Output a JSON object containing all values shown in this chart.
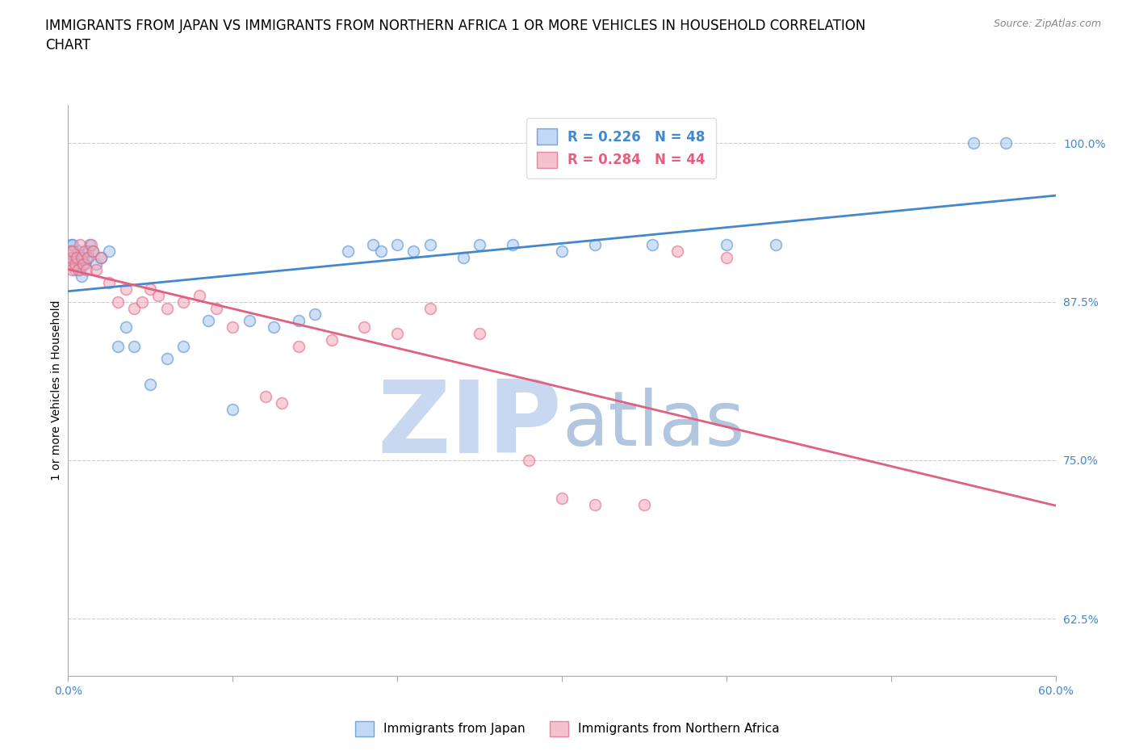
{
  "title": "IMMIGRANTS FROM JAPAN VS IMMIGRANTS FROM NORTHERN AFRICA 1 OR MORE VEHICLES IN HOUSEHOLD CORRELATION\nCHART",
  "source": "Source: ZipAtlas.com",
  "xmin": 0.0,
  "xmax": 60.0,
  "ymin": 58.0,
  "ymax": 103.0,
  "japan_R": 0.226,
  "japan_N": 48,
  "africa_R": 0.284,
  "africa_N": 44,
  "japan_color": "#a8c8f0",
  "africa_color": "#f0a8b8",
  "japan_line_color": "#4488cc",
  "africa_line_color": "#e06080",
  "japan_scatter_x": [
    0.1,
    0.15,
    0.2,
    0.25,
    0.3,
    0.35,
    0.4,
    0.5,
    0.6,
    0.7,
    0.8,
    0.9,
    1.0,
    1.1,
    1.2,
    1.3,
    1.5,
    1.7,
    2.0,
    2.5,
    3.0,
    3.5,
    4.0,
    5.0,
    6.0,
    7.0,
    8.5,
    10.0,
    11.0,
    12.5,
    14.0,
    15.0,
    17.0,
    18.5,
    19.0,
    20.0,
    21.0,
    22.0,
    24.0,
    25.0,
    27.0,
    30.0,
    32.0,
    35.5,
    40.0,
    43.0,
    55.0,
    57.0
  ],
  "japan_scatter_y": [
    91.0,
    90.5,
    92.0,
    91.5,
    92.0,
    91.0,
    90.0,
    90.5,
    91.5,
    90.0,
    89.5,
    91.0,
    90.5,
    91.0,
    91.5,
    92.0,
    91.5,
    90.5,
    91.0,
    91.5,
    84.0,
    85.5,
    84.0,
    81.0,
    83.0,
    84.0,
    86.0,
    79.0,
    86.0,
    85.5,
    86.0,
    86.5,
    91.5,
    92.0,
    91.5,
    92.0,
    91.5,
    92.0,
    91.0,
    92.0,
    92.0,
    91.5,
    92.0,
    92.0,
    92.0,
    92.0,
    100.0,
    100.0
  ],
  "africa_scatter_x": [
    0.1,
    0.15,
    0.2,
    0.25,
    0.3,
    0.4,
    0.5,
    0.6,
    0.7,
    0.8,
    0.9,
    1.0,
    1.1,
    1.2,
    1.4,
    1.5,
    1.7,
    2.0,
    2.5,
    3.0,
    3.5,
    4.0,
    4.5,
    5.0,
    5.5,
    6.0,
    7.0,
    8.0,
    9.0,
    10.0,
    12.0,
    13.0,
    14.0,
    16.0,
    18.0,
    20.0,
    22.0,
    25.0,
    28.0,
    30.0,
    32.0,
    35.0,
    37.0,
    40.0
  ],
  "africa_scatter_y": [
    90.5,
    91.5,
    91.0,
    90.0,
    91.5,
    90.5,
    91.0,
    90.0,
    92.0,
    91.0,
    90.5,
    91.5,
    90.0,
    91.0,
    92.0,
    91.5,
    90.0,
    91.0,
    89.0,
    87.5,
    88.5,
    87.0,
    87.5,
    88.5,
    88.0,
    87.0,
    87.5,
    88.0,
    87.0,
    85.5,
    80.0,
    79.5,
    84.0,
    84.5,
    85.5,
    85.0,
    87.0,
    85.0,
    75.0,
    72.0,
    71.5,
    71.5,
    91.5,
    91.0
  ],
  "watermark_zip": "ZIP",
  "watermark_atlas": "atlas",
  "watermark_color_zip": "#c8d8f0",
  "watermark_color_atlas": "#a0b8d8",
  "watermark_fontsize": 90,
  "background_color": "#ffffff",
  "grid_color": "#cccccc",
  "title_fontsize": 12,
  "axis_label_fontsize": 10,
  "tick_fontsize": 10,
  "marker_size": 100,
  "marker_alpha": 0.55,
  "line_width": 2.0,
  "ytick_vals": [
    62.5,
    75.0,
    87.5,
    100.0
  ]
}
